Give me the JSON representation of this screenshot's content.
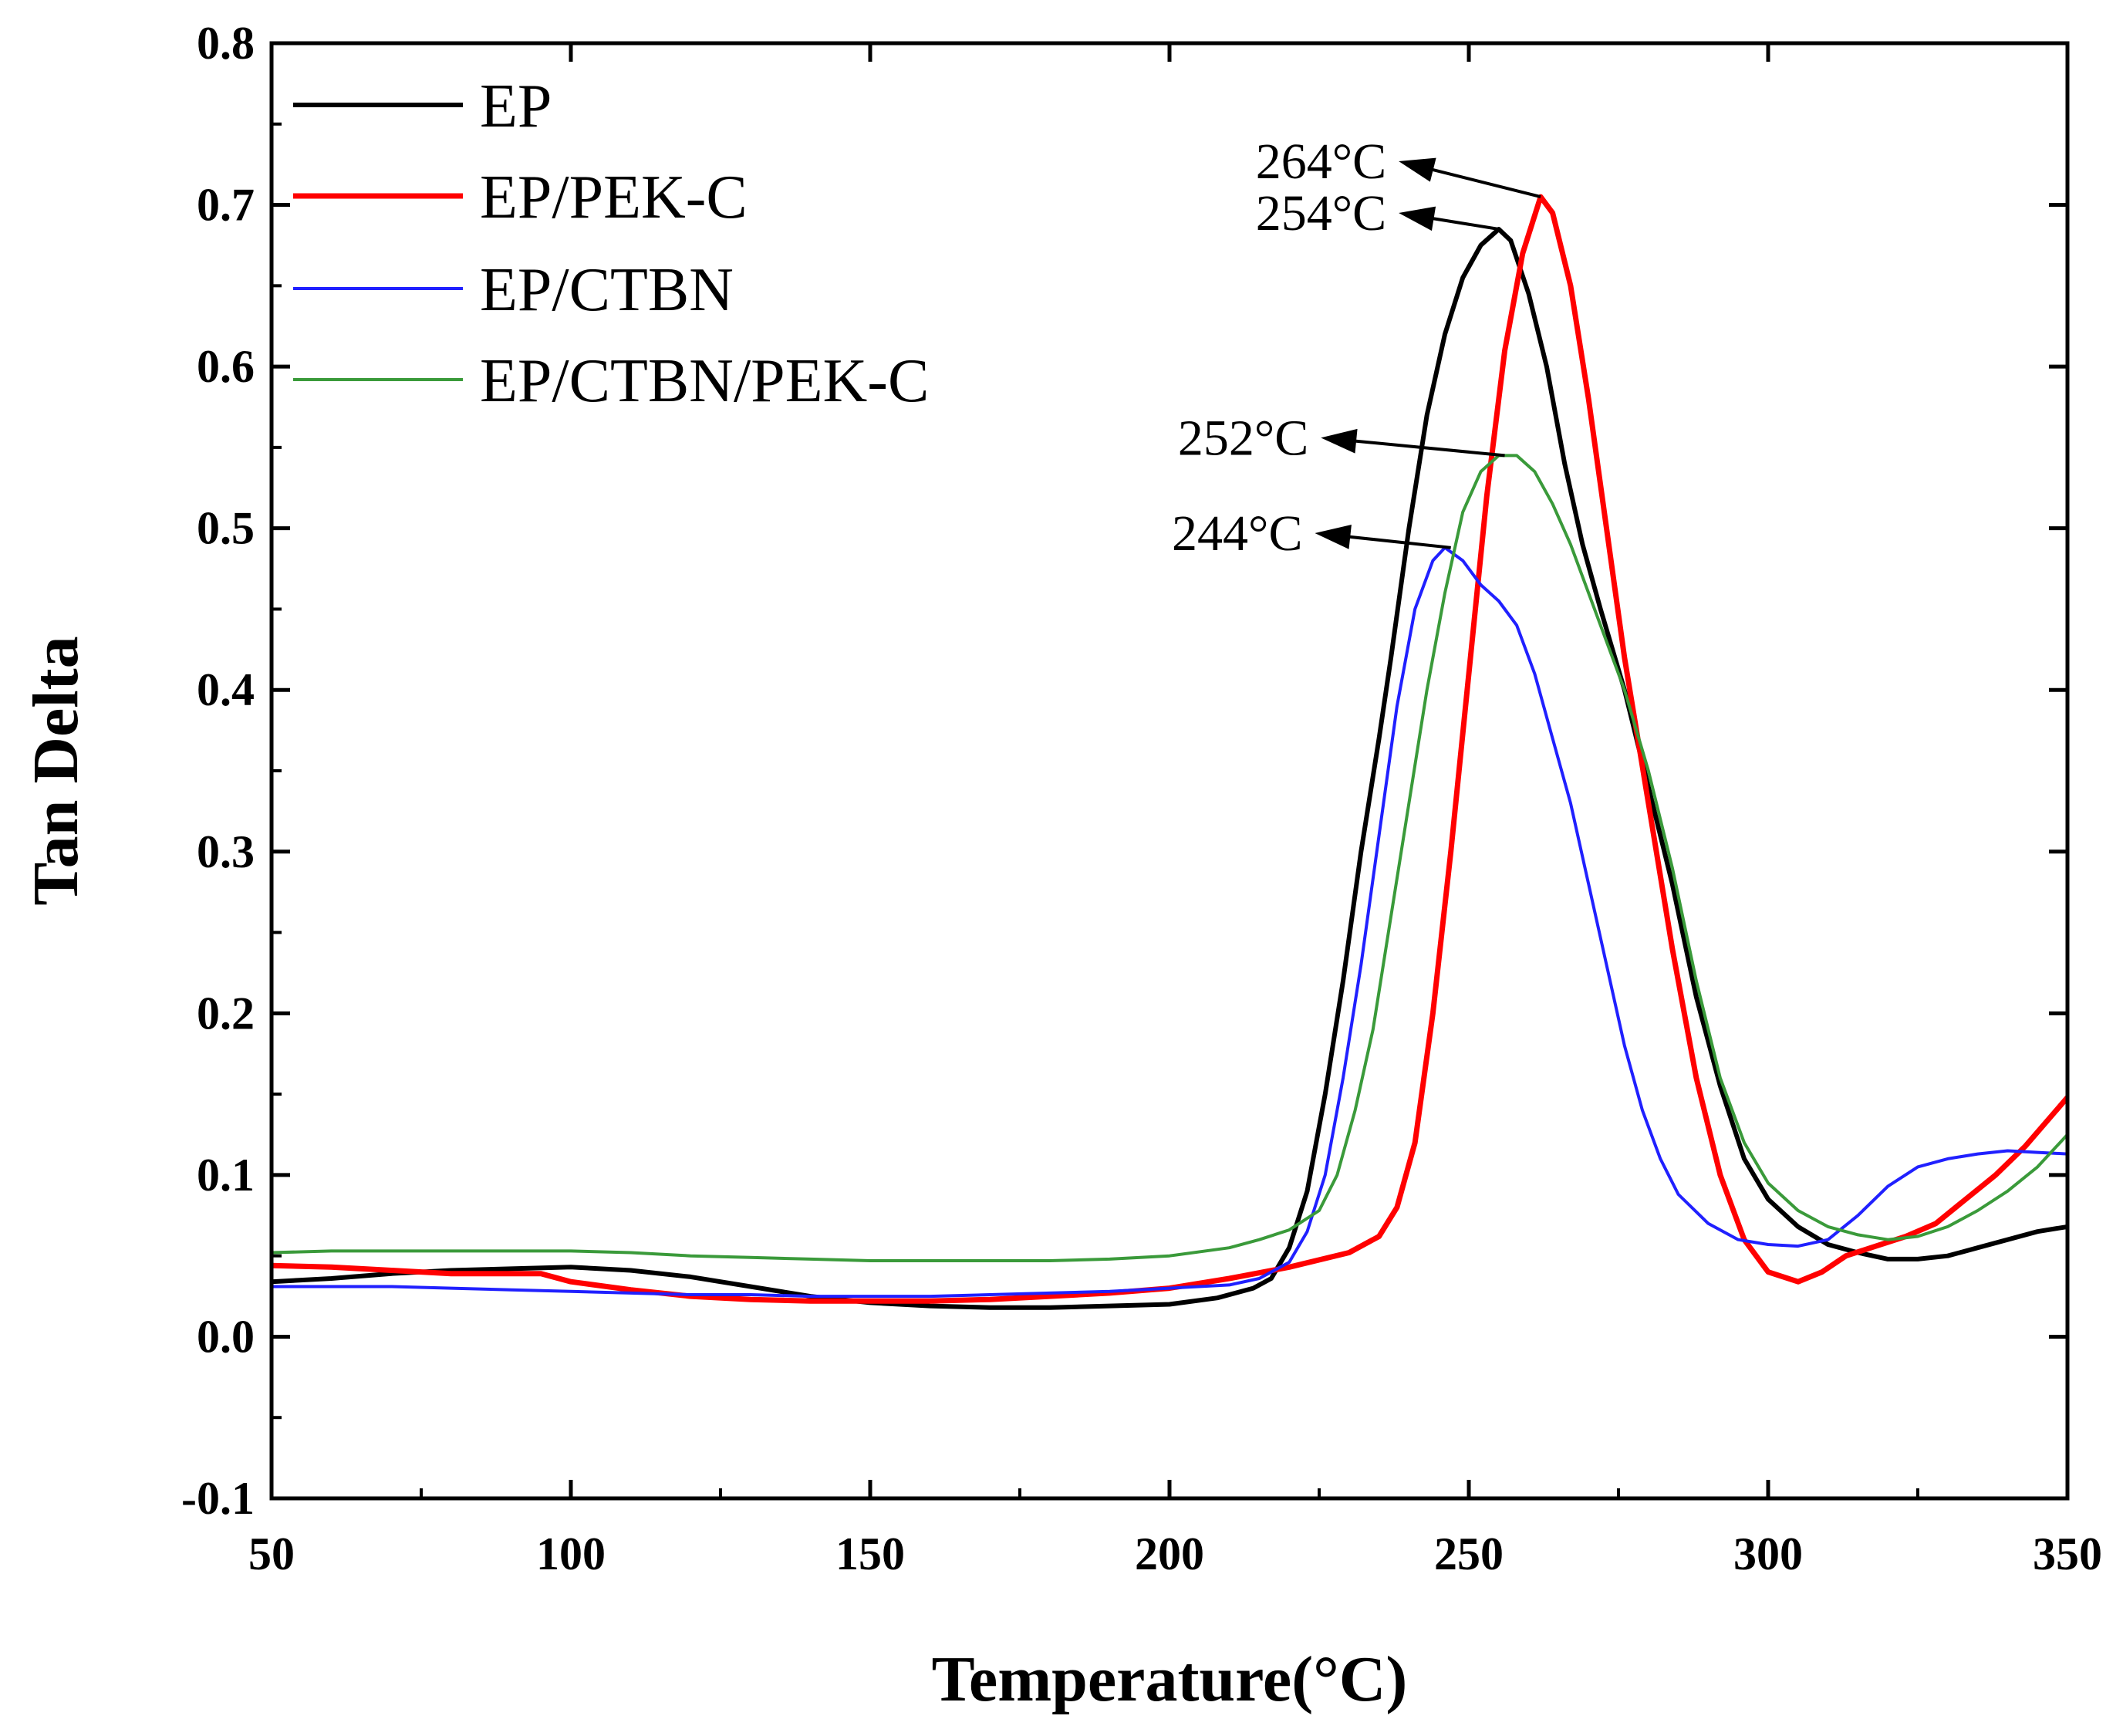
{
  "chart_data": {
    "type": "line",
    "title": "",
    "xlabel": "Temperature(°C)",
    "ylabel": "Tan Delta",
    "xlim": [
      50,
      350
    ],
    "ylim": [
      -0.1,
      0.8
    ],
    "xticks": [
      50,
      100,
      150,
      200,
      250,
      300,
      350
    ],
    "yticks": [
      -0.1,
      0.0,
      0.1,
      0.2,
      0.3,
      0.4,
      0.5,
      0.6,
      0.7,
      0.8
    ],
    "xtick_labels": [
      "50",
      "100",
      "150",
      "200",
      "250",
      "300",
      "350"
    ],
    "ytick_labels": [
      "-0.1",
      "0.0",
      "0.1",
      "0.2",
      "0.3",
      "0.4",
      "0.5",
      "0.6",
      "0.7",
      "0.8"
    ],
    "grid": false,
    "legend_position": "top-left",
    "series": [
      {
        "name": "EP",
        "color": "#000000",
        "style": "solid",
        "points": [
          [
            50,
            0.034
          ],
          [
            60,
            0.036
          ],
          [
            70,
            0.039
          ],
          [
            80,
            0.041
          ],
          [
            90,
            0.042
          ],
          [
            100,
            0.043
          ],
          [
            110,
            0.041
          ],
          [
            120,
            0.037
          ],
          [
            130,
            0.031
          ],
          [
            140,
            0.025
          ],
          [
            150,
            0.021
          ],
          [
            160,
            0.019
          ],
          [
            170,
            0.018
          ],
          [
            180,
            0.018
          ],
          [
            190,
            0.019
          ],
          [
            200,
            0.02
          ],
          [
            208,
            0.024
          ],
          [
            214,
            0.03
          ],
          [
            217,
            0.036
          ],
          [
            220,
            0.055
          ],
          [
            223,
            0.09
          ],
          [
            226,
            0.15
          ],
          [
            229,
            0.22
          ],
          [
            232,
            0.3
          ],
          [
            235,
            0.37
          ],
          [
            237,
            0.42
          ],
          [
            240,
            0.5
          ],
          [
            243,
            0.57
          ],
          [
            246,
            0.62
          ],
          [
            249,
            0.655
          ],
          [
            252,
            0.675
          ],
          [
            255,
            0.685
          ],
          [
            257,
            0.678
          ],
          [
            260,
            0.645
          ],
          [
            263,
            0.6
          ],
          [
            266,
            0.54
          ],
          [
            269,
            0.49
          ],
          [
            272,
            0.45
          ],
          [
            276,
            0.4
          ],
          [
            280,
            0.34
          ],
          [
            284,
            0.28
          ],
          [
            288,
            0.21
          ],
          [
            292,
            0.155
          ],
          [
            296,
            0.11
          ],
          [
            300,
            0.085
          ],
          [
            305,
            0.068
          ],
          [
            310,
            0.057
          ],
          [
            315,
            0.052
          ],
          [
            320,
            0.048
          ],
          [
            325,
            0.048
          ],
          [
            330,
            0.05
          ],
          [
            335,
            0.055
          ],
          [
            340,
            0.06
          ],
          [
            345,
            0.065
          ],
          [
            350,
            0.068
          ]
        ]
      },
      {
        "name": "EP/PEK-C",
        "color": "#ff0000",
        "style": "solid",
        "points": [
          [
            50,
            0.044
          ],
          [
            60,
            0.043
          ],
          [
            70,
            0.041
          ],
          [
            80,
            0.039
          ],
          [
            90,
            0.039
          ],
          [
            95,
            0.039
          ],
          [
            100,
            0.034
          ],
          [
            110,
            0.029
          ],
          [
            120,
            0.025
          ],
          [
            130,
            0.023
          ],
          [
            140,
            0.022
          ],
          [
            150,
            0.022
          ],
          [
            160,
            0.022
          ],
          [
            170,
            0.023
          ],
          [
            180,
            0.025
          ],
          [
            190,
            0.027
          ],
          [
            200,
            0.03
          ],
          [
            210,
            0.036
          ],
          [
            220,
            0.043
          ],
          [
            230,
            0.052
          ],
          [
            235,
            0.062
          ],
          [
            238,
            0.08
          ],
          [
            241,
            0.12
          ],
          [
            244,
            0.2
          ],
          [
            247,
            0.3
          ],
          [
            250,
            0.41
          ],
          [
            253,
            0.52
          ],
          [
            256,
            0.61
          ],
          [
            259,
            0.67
          ],
          [
            262,
            0.705
          ],
          [
            264,
            0.695
          ],
          [
            267,
            0.65
          ],
          [
            270,
            0.58
          ],
          [
            273,
            0.5
          ],
          [
            276,
            0.42
          ],
          [
            280,
            0.33
          ],
          [
            284,
            0.24
          ],
          [
            288,
            0.16
          ],
          [
            292,
            0.1
          ],
          [
            296,
            0.06
          ],
          [
            300,
            0.04
          ],
          [
            305,
            0.034
          ],
          [
            309,
            0.04
          ],
          [
            313,
            0.05
          ],
          [
            318,
            0.056
          ],
          [
            323,
            0.062
          ],
          [
            328,
            0.07
          ],
          [
            333,
            0.085
          ],
          [
            338,
            0.1
          ],
          [
            343,
            0.118
          ],
          [
            350,
            0.148
          ]
        ]
      },
      {
        "name": "EP/CTBN",
        "color": "#2020ff",
        "style": "solid",
        "points": [
          [
            50,
            0.031
          ],
          [
            60,
            0.031
          ],
          [
            70,
            0.031
          ],
          [
            80,
            0.03
          ],
          [
            90,
            0.029
          ],
          [
            100,
            0.028
          ],
          [
            110,
            0.027
          ],
          [
            120,
            0.026
          ],
          [
            130,
            0.026
          ],
          [
            140,
            0.025
          ],
          [
            150,
            0.025
          ],
          [
            160,
            0.025
          ],
          [
            170,
            0.026
          ],
          [
            180,
            0.027
          ],
          [
            190,
            0.028
          ],
          [
            200,
            0.03
          ],
          [
            210,
            0.032
          ],
          [
            215,
            0.036
          ],
          [
            220,
            0.046
          ],
          [
            223,
            0.065
          ],
          [
            226,
            0.1
          ],
          [
            229,
            0.16
          ],
          [
            232,
            0.23
          ],
          [
            235,
            0.31
          ],
          [
            238,
            0.39
          ],
          [
            241,
            0.45
          ],
          [
            244,
            0.48
          ],
          [
            246,
            0.488
          ],
          [
            249,
            0.48
          ],
          [
            252,
            0.465
          ],
          [
            255,
            0.455
          ],
          [
            258,
            0.44
          ],
          [
            261,
            0.41
          ],
          [
            264,
            0.37
          ],
          [
            267,
            0.33
          ],
          [
            270,
            0.28
          ],
          [
            273,
            0.23
          ],
          [
            276,
            0.18
          ],
          [
            279,
            0.14
          ],
          [
            282,
            0.11
          ],
          [
            285,
            0.088
          ],
          [
            290,
            0.07
          ],
          [
            295,
            0.06
          ],
          [
            300,
            0.057
          ],
          [
            305,
            0.056
          ],
          [
            310,
            0.06
          ],
          [
            315,
            0.075
          ],
          [
            320,
            0.093
          ],
          [
            325,
            0.105
          ],
          [
            330,
            0.11
          ],
          [
            335,
            0.113
          ],
          [
            340,
            0.115
          ],
          [
            345,
            0.114
          ],
          [
            350,
            0.113
          ]
        ]
      },
      {
        "name": "EP/CTBN/PEK-C",
        "color": "#3a9a3a",
        "style": "solid",
        "points": [
          [
            50,
            0.052
          ],
          [
            60,
            0.053
          ],
          [
            70,
            0.053
          ],
          [
            80,
            0.053
          ],
          [
            90,
            0.053
          ],
          [
            100,
            0.053
          ],
          [
            110,
            0.052
          ],
          [
            120,
            0.05
          ],
          [
            130,
            0.049
          ],
          [
            140,
            0.048
          ],
          [
            150,
            0.047
          ],
          [
            160,
            0.047
          ],
          [
            170,
            0.047
          ],
          [
            180,
            0.047
          ],
          [
            190,
            0.048
          ],
          [
            200,
            0.05
          ],
          [
            210,
            0.055
          ],
          [
            215,
            0.06
          ],
          [
            220,
            0.066
          ],
          [
            225,
            0.078
          ],
          [
            228,
            0.1
          ],
          [
            231,
            0.14
          ],
          [
            234,
            0.19
          ],
          [
            237,
            0.26
          ],
          [
            240,
            0.33
          ],
          [
            243,
            0.4
          ],
          [
            246,
            0.46
          ],
          [
            249,
            0.51
          ],
          [
            252,
            0.535
          ],
          [
            255,
            0.545
          ],
          [
            258,
            0.545
          ],
          [
            261,
            0.535
          ],
          [
            264,
            0.515
          ],
          [
            267,
            0.49
          ],
          [
            270,
            0.46
          ],
          [
            273,
            0.43
          ],
          [
            276,
            0.4
          ],
          [
            280,
            0.35
          ],
          [
            284,
            0.29
          ],
          [
            288,
            0.22
          ],
          [
            292,
            0.16
          ],
          [
            296,
            0.12
          ],
          [
            300,
            0.095
          ],
          [
            305,
            0.078
          ],
          [
            310,
            0.068
          ],
          [
            315,
            0.063
          ],
          [
            320,
            0.06
          ],
          [
            325,
            0.062
          ],
          [
            330,
            0.068
          ],
          [
            335,
            0.078
          ],
          [
            340,
            0.09
          ],
          [
            345,
            0.105
          ],
          [
            350,
            0.125
          ]
        ]
      }
    ],
    "annotations": [
      {
        "text": "264°C",
        "x": 262,
        "y": 0.705,
        "text_x": 237,
        "text_y": 0.727
      },
      {
        "text": "254°C",
        "x": 255,
        "y": 0.685,
        "text_x": 237,
        "text_y": 0.695
      },
      {
        "text": "252°C",
        "x": 256,
        "y": 0.545,
        "text_x": 224,
        "text_y": 0.556
      },
      {
        "text": "244°C",
        "x": 247,
        "y": 0.488,
        "text_x": 223,
        "text_y": 0.497
      }
    ]
  }
}
